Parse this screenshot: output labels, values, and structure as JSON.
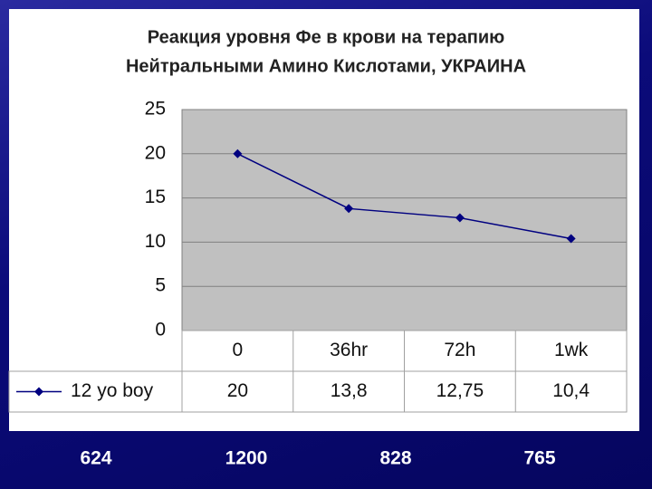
{
  "chart_data": {
    "type": "line",
    "title": "Реакция уровня Фе в крови на терапию",
    "subtitle": "Нейтральными Амино Кислотами, УКРАИНА",
    "categories": [
      "0",
      "36hr",
      "72h",
      "1wk"
    ],
    "series": [
      {
        "name": "12 yo boy",
        "color": "#000080",
        "values": [
          20,
          13.8,
          12.75,
          10.4
        ],
        "value_labels": [
          "20",
          "13,8",
          "12,75",
          "10,4"
        ]
      }
    ],
    "ylim": [
      0,
      25
    ],
    "yticks": [
      0,
      5,
      10,
      15,
      20,
      25
    ],
    "grid": true,
    "plot_background": "#c0c0c0"
  },
  "footer_values": [
    624,
    1200,
    828,
    765
  ]
}
